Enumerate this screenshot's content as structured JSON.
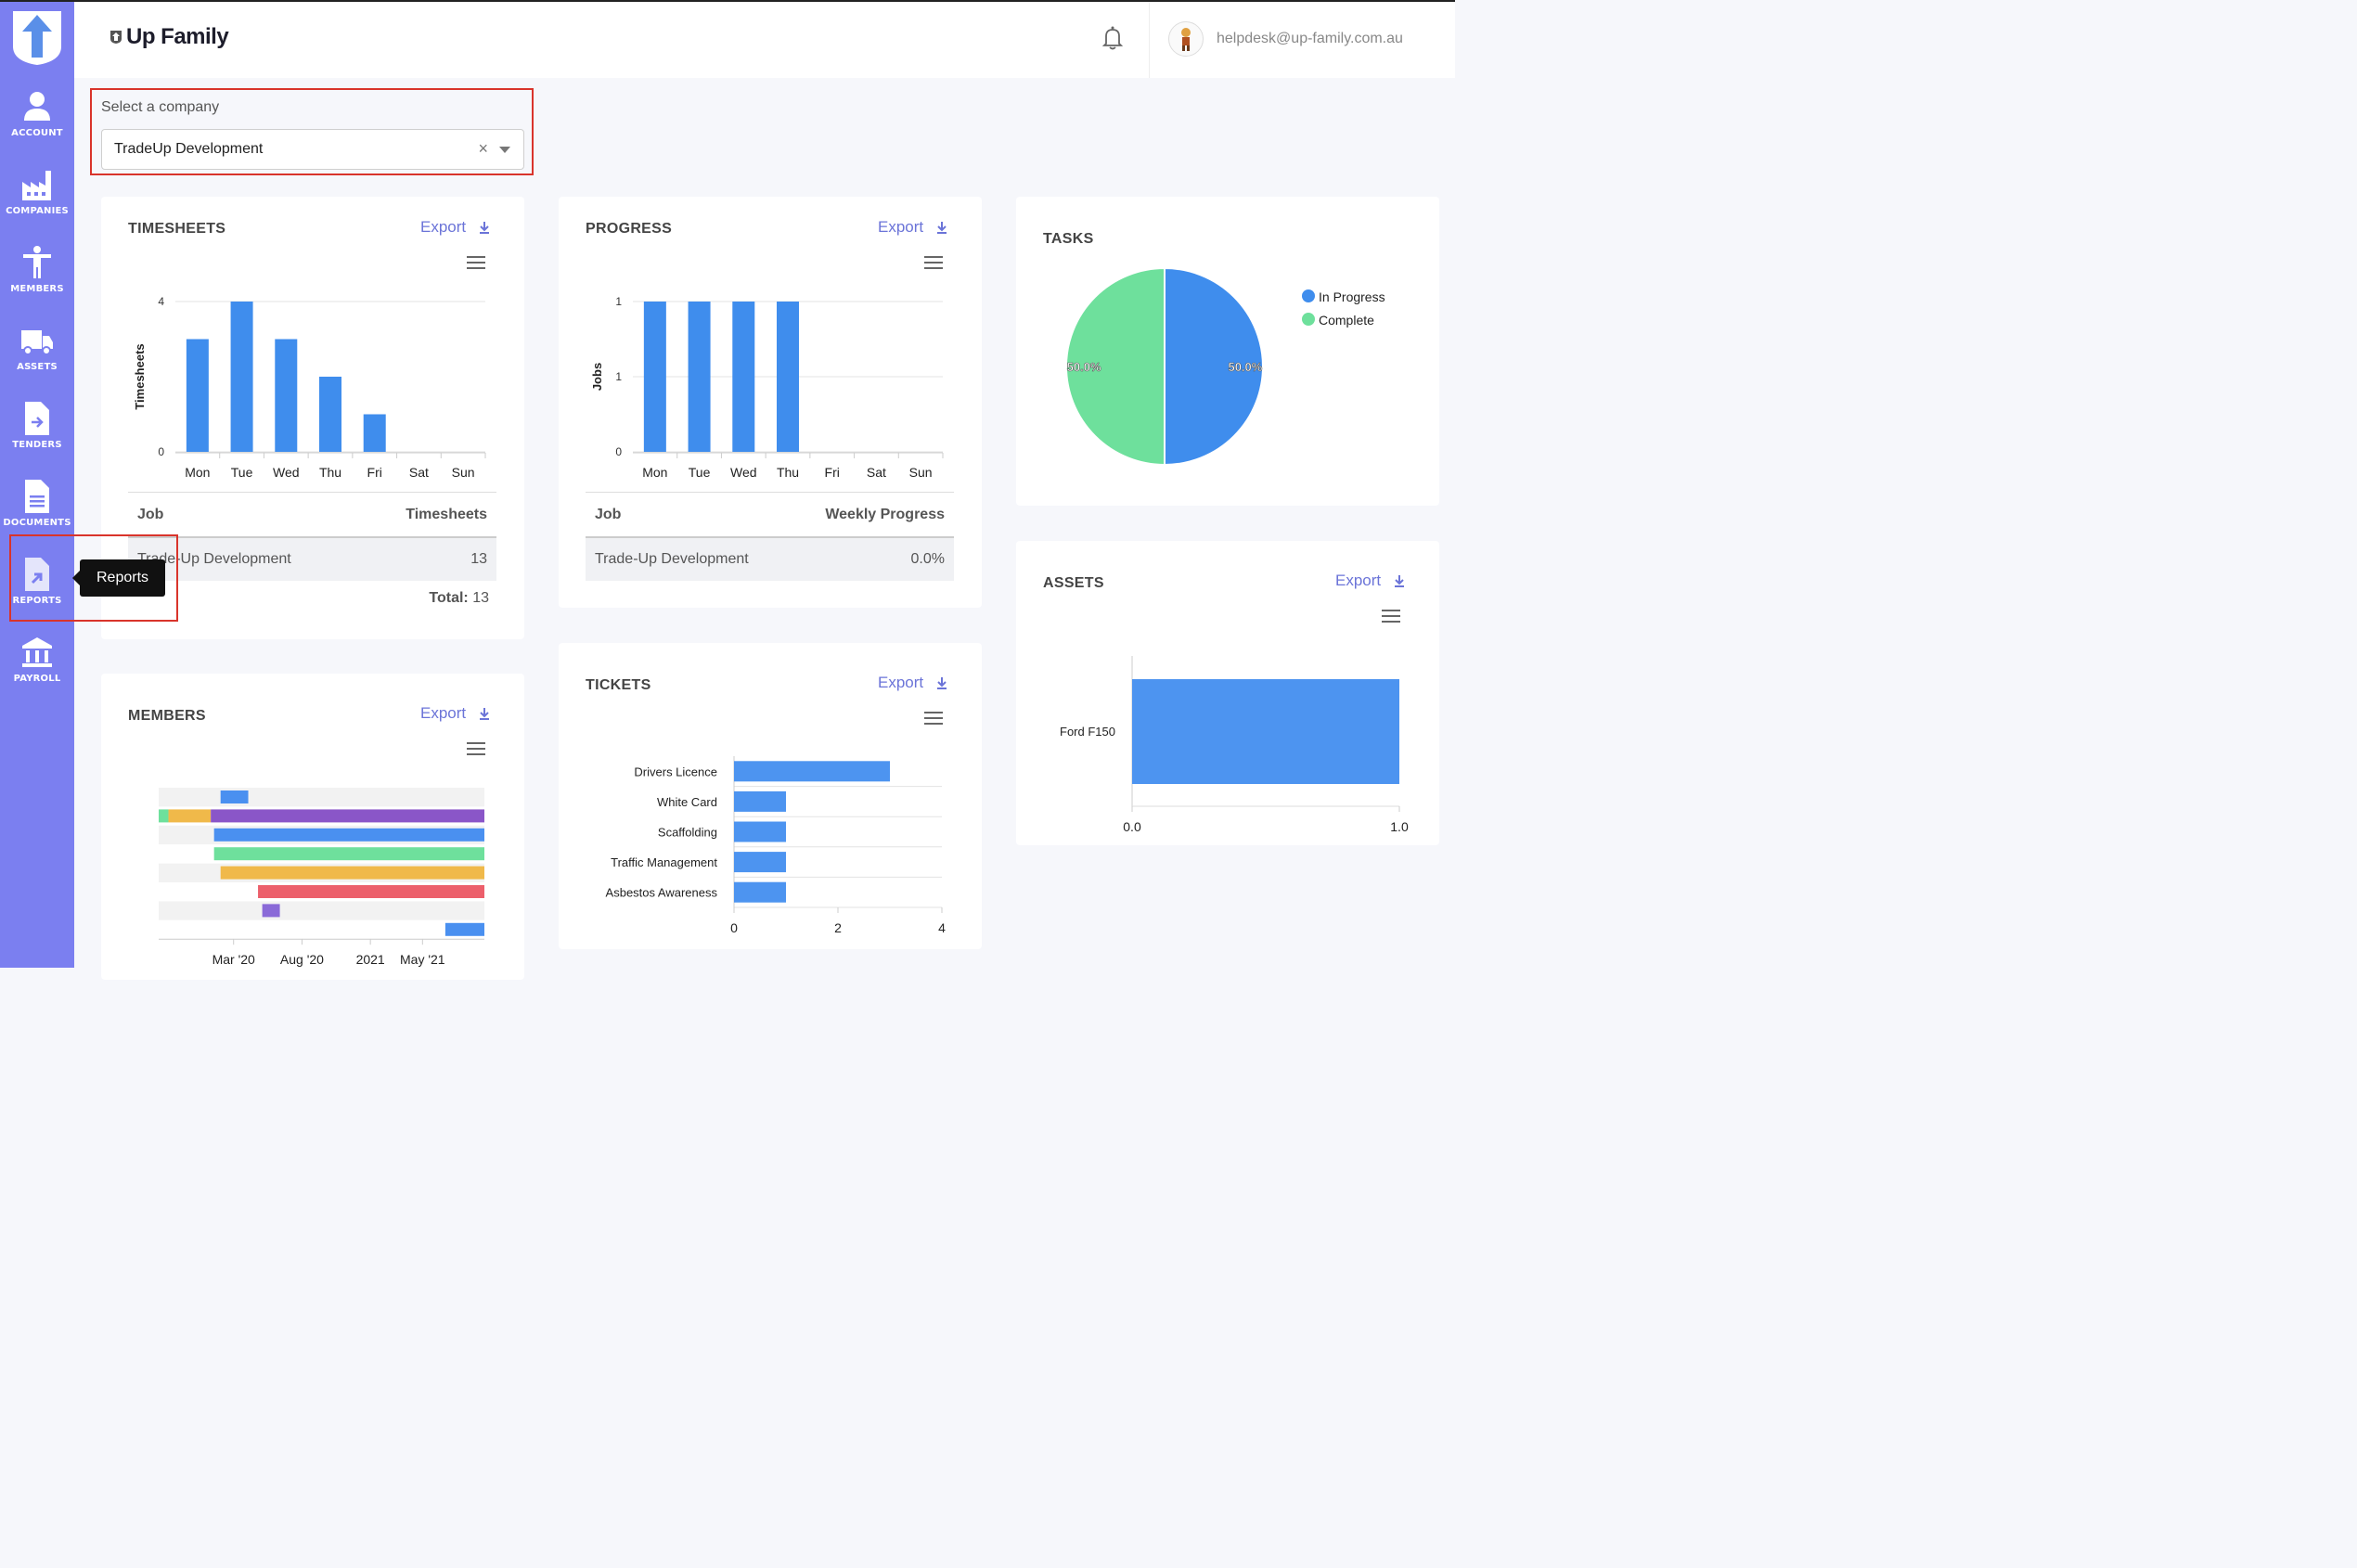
{
  "app": {
    "brand": "Up Family"
  },
  "nav": [
    {
      "label": "ACCOUNT",
      "icon": "user-icon"
    },
    {
      "label": "COMPANIES",
      "icon": "factory-icon"
    },
    {
      "label": "MEMBERS",
      "icon": "person-icon"
    },
    {
      "label": "ASSETS",
      "icon": "truck-icon"
    },
    {
      "label": "TENDERS",
      "icon": "file-export-icon"
    },
    {
      "label": "DOCUMENTS",
      "icon": "document-icon"
    },
    {
      "label": "REPORTS",
      "icon": "report-icon"
    },
    {
      "label": "PAYROLL",
      "icon": "bank-icon"
    }
  ],
  "tooltip": "Reports",
  "header": {
    "user_email": "helpdesk@up-family.com.au",
    "notification_icon": "bell-icon"
  },
  "company": {
    "label": "Select a company",
    "value": "TradeUp Development",
    "clear": "×"
  },
  "export_label": "Export",
  "timesheets": {
    "title": "TIMESHEETS",
    "table": {
      "col1": "Job",
      "col2": "Timesheets",
      "row_job": "Trade-Up Development",
      "row_value": "13",
      "total_label": "Total:",
      "total_value": "13"
    }
  },
  "progress": {
    "title": "PROGRESS",
    "table": {
      "col1": "Job",
      "col2": "Weekly Progress",
      "row_job": "Trade-Up Development",
      "row_value": "0.0%"
    }
  },
  "tasks": {
    "title": "TASKS"
  },
  "assets": {
    "title": "ASSETS"
  },
  "members": {
    "title": "MEMBERS"
  },
  "tickets": {
    "title": "TICKETS"
  },
  "colors": {
    "sidebar": "#7b7ff0",
    "bar_blue": "#3f8ded",
    "green": "#6ee09c",
    "accent_red": "#d9342b",
    "link": "#6b74d8"
  },
  "chart_data": [
    {
      "id": "timesheets",
      "type": "bar",
      "categories": [
        "Mon",
        "Tue",
        "Wed",
        "Thu",
        "Fri",
        "Sat",
        "Sun"
      ],
      "values": [
        3,
        4,
        3,
        2,
        1,
        0,
        0
      ],
      "ylabel": "Timesheets",
      "ylim": [
        0,
        4
      ],
      "yticks": [
        "0",
        "4"
      ],
      "grid": true
    },
    {
      "id": "progress",
      "type": "bar",
      "categories": [
        "Mon",
        "Tue",
        "Wed",
        "Thu",
        "Fri",
        "Sat",
        "Sun"
      ],
      "values": [
        1,
        1,
        1,
        1,
        0,
        0,
        0
      ],
      "ylabel": "Jobs",
      "ylim": [
        0,
        1
      ],
      "yticks": [
        "0",
        "1",
        "1"
      ],
      "grid": true
    },
    {
      "id": "tasks",
      "type": "pie",
      "slices": [
        {
          "name": "In Progress",
          "value": 50.0,
          "label": "50.0%",
          "color": "#3f8ded"
        },
        {
          "name": "Complete",
          "value": 50.0,
          "label": "50.0%",
          "color": "#6ee09c"
        }
      ],
      "legend": "top-right"
    },
    {
      "id": "assets",
      "type": "bar",
      "orientation": "horizontal",
      "categories": [
        "Ford F150"
      ],
      "values": [
        1.0
      ],
      "xlim": [
        0,
        1
      ],
      "xticks": [
        "0.0",
        "1.0"
      ]
    },
    {
      "id": "tickets",
      "type": "bar",
      "orientation": "horizontal",
      "categories": [
        "Drivers Licence",
        "White Card",
        "Scaffolding",
        "Traffic Management",
        "Asbestos Awareness"
      ],
      "values": [
        3,
        1,
        1,
        1,
        1
      ],
      "xlim": [
        0,
        4
      ],
      "xticks": [
        "0",
        "2",
        "4"
      ],
      "grid": true
    },
    {
      "id": "members",
      "type": "gantt",
      "xticks": [
        "Mar '20",
        "Aug '20",
        "2021",
        "May '21"
      ],
      "rows": [
        {
          "segments": [
            {
              "start": 0.19,
              "end": 0.275,
              "color": "#4a90f0"
            }
          ]
        },
        {
          "segments": [
            {
              "start": 0.0,
              "end": 0.03,
              "color": "#6ee09c"
            },
            {
              "start": 0.03,
              "end": 0.16,
              "color": "#f0b94a"
            },
            {
              "start": 0.16,
              "end": 1.0,
              "color": "#8a56c8"
            }
          ]
        },
        {
          "segments": [
            {
              "start": 0.17,
              "end": 1.0,
              "color": "#4a90f0"
            }
          ]
        },
        {
          "segments": [
            {
              "start": 0.17,
              "end": 1.0,
              "color": "#6ee09c"
            }
          ]
        },
        {
          "segments": [
            {
              "start": 0.19,
              "end": 1.0,
              "color": "#f0b94a"
            }
          ]
        },
        {
          "segments": [
            {
              "start": 0.305,
              "end": 1.0,
              "color": "#ec5f6b"
            }
          ]
        },
        {
          "segments": [
            {
              "start": 0.318,
              "end": 0.372,
              "color": "#8a6ad8"
            }
          ]
        },
        {
          "segments": [
            {
              "start": 0.88,
              "end": 1.0,
              "color": "#4a90f0"
            }
          ]
        }
      ]
    }
  ]
}
